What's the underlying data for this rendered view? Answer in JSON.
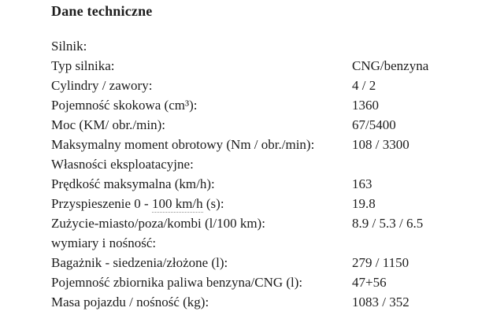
{
  "title": "Dane techniczne",
  "colors": {
    "text": "#1c1c1c",
    "background": "#ffffff",
    "dotted_underline": "#8f8f8f"
  },
  "table": {
    "rows": [
      {
        "label": "Silnik:",
        "value": ""
      },
      {
        "label": "Typ silnika:",
        "value": "CNG/benzyna"
      },
      {
        "label": "Cylindry / zawory:",
        "value": "4 / 2"
      },
      {
        "label": "Pojemność skokowa (cm³):",
        "value": "1360"
      },
      {
        "label": "Moc (KM/ obr./min):",
        "value": "67/5400"
      },
      {
        "label": "Maksymalny moment obrotowy (Nm / obr./min):",
        "value": "108 / 3300"
      },
      {
        "label": "Własności eksploatacyjne:",
        "value": ""
      },
      {
        "label": "Prędkość maksymalna (km/h):",
        "value": "163"
      },
      {
        "label_prefix": "Przyspieszenie 0 - ",
        "label_underlined": "100 km/h",
        "label_suffix": " (s):",
        "value": "19.8"
      },
      {
        "label": "Zużycie-miasto/poza/kombi (l/100 km):",
        "value": "8.9 / 5.3 / 6.5"
      },
      {
        "label": "wymiary i nośność:",
        "value": ""
      },
      {
        "label": "Bagażnik - siedzenia/złożone (l):",
        "value": "279 / 1150"
      },
      {
        "label": "Pojemność zbiornika paliwa benzyna/CNG (l):",
        "value": "47+56"
      },
      {
        "label": "Masa pojazdu / nośność (kg):",
        "value": "1083 / 352"
      }
    ]
  }
}
